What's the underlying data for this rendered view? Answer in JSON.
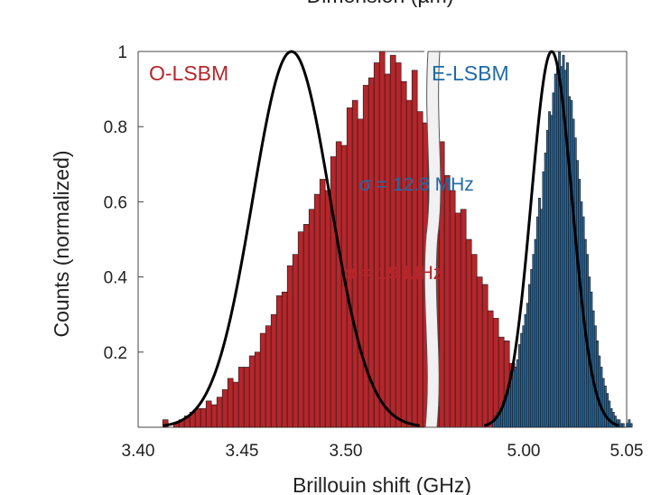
{
  "chart_data": {
    "type": "bar",
    "top_label_cut": "Dimension (µm)",
    "xlabel": "Brillouin shift (GHz)",
    "ylabel": "Counts (normalized)",
    "ylim": [
      0,
      1
    ],
    "yticks": [
      1,
      0.8,
      0.6,
      0.4,
      0.2
    ],
    "ytick_labels": [
      "1",
      "0.8",
      "0.6",
      "0.4",
      "0.2"
    ],
    "broken_x_axis": true,
    "colors": {
      "o": "#b5262b",
      "e": "#1f6aa8",
      "fit": "#000000"
    },
    "panels": [
      {
        "key": "o",
        "series_label": "O-LSBM",
        "sigma_label": "σ = 19 MHz",
        "xlim": [
          3.4,
          3.54
        ],
        "xticks": [
          3.4,
          3.45,
          3.5
        ],
        "xtick_labels": [
          "3.40",
          "3.45",
          "3.50"
        ],
        "fit": {
          "mu": 3.475,
          "sigma": 0.019,
          "amplitude": 1.0
        },
        "bins": {
          "start": 3.412,
          "width": 0.00265,
          "values": [
            0.02,
            0.0,
            0.01,
            0.02,
            0.03,
            0.04,
            0.05,
            0.05,
            0.07,
            0.06,
            0.08,
            0.1,
            0.13,
            0.12,
            0.16,
            0.16,
            0.19,
            0.2,
            0.25,
            0.27,
            0.3,
            0.35,
            0.36,
            0.43,
            0.46,
            0.52,
            0.54,
            0.58,
            0.62,
            0.66,
            0.63,
            0.72,
            0.76,
            0.75,
            0.85,
            0.87,
            0.82,
            0.91,
            0.93,
            0.97,
            1.0,
            0.94,
            0.99,
            0.97,
            0.92,
            0.87,
            0.95,
            0.84,
            0.81,
            0.78,
            0.72,
            0.76,
            0.67,
            0.63,
            0.57,
            0.58,
            0.5,
            0.46,
            0.4,
            0.38,
            0.31,
            0.29,
            0.24,
            0.23,
            0.17,
            0.16,
            0.13,
            0.1,
            0.09,
            0.06,
            0.05,
            0.04,
            0.03,
            0.02,
            0.02,
            0.01
          ]
        }
      },
      {
        "key": "e",
        "series_label": "E-LSBM",
        "sigma_label": "σ = 12.8 MHz",
        "xlim": [
          4.93,
          5.05
        ],
        "xticks": [
          5.0,
          5.05
        ],
        "xtick_labels": [
          "5.00",
          "5.05"
        ],
        "fit": {
          "mu": 5.003,
          "sigma": 0.0128,
          "amplitude": 1.0
        },
        "bins": {
          "start": 4.966,
          "width": 0.00125,
          "values": [
            0.02,
            0.03,
            0.04,
            0.04,
            0.05,
            0.07,
            0.08,
            0.1,
            0.11,
            0.13,
            0.15,
            0.16,
            0.18,
            0.22,
            0.25,
            0.27,
            0.3,
            0.33,
            0.38,
            0.42,
            0.46,
            0.5,
            0.56,
            0.61,
            0.58,
            0.68,
            0.73,
            0.79,
            0.84,
            0.83,
            0.89,
            0.94,
            0.97,
            1.0,
            0.96,
            0.99,
            0.95,
            0.97,
            0.88,
            0.87,
            0.82,
            0.77,
            0.71,
            0.66,
            0.6,
            0.56,
            0.5,
            0.46,
            0.4,
            0.36,
            0.31,
            0.27,
            0.23,
            0.19,
            0.16,
            0.13,
            0.11,
            0.09,
            0.07,
            0.05,
            0.04,
            0.03,
            0.02,
            0.02,
            0.01,
            0.01,
            0.0,
            0.01,
            0.02,
            0.01
          ]
        }
      }
    ]
  }
}
